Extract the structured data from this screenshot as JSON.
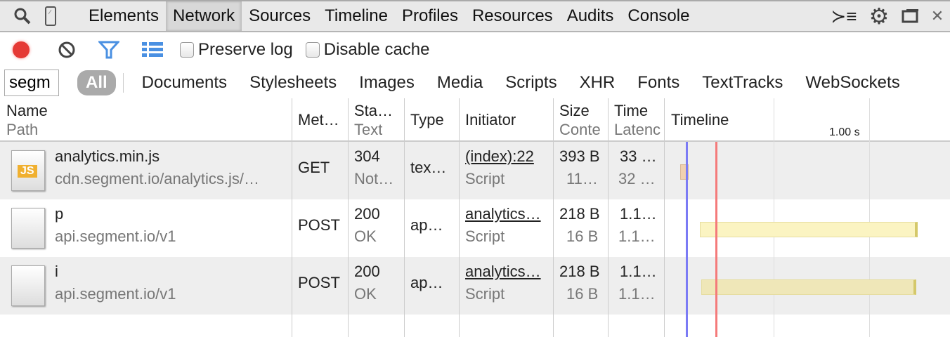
{
  "toolbar": {
    "tabs": [
      "Elements",
      "Network",
      "Sources",
      "Timeline",
      "Profiles",
      "Resources",
      "Audits",
      "Console"
    ],
    "active": "Network"
  },
  "controls": {
    "preserve_log": "Preserve log",
    "disable_cache": "Disable cache",
    "record_color": "#e53935"
  },
  "filter": {
    "search_value": "segm",
    "all": "All",
    "types": [
      "Documents",
      "Stylesheets",
      "Images",
      "Media",
      "Scripts",
      "XHR",
      "Fonts",
      "TextTracks",
      "WebSockets"
    ]
  },
  "columns": {
    "name": "Name",
    "path": "Path",
    "method": "Met…",
    "status": "Sta…",
    "status_sub": "Text",
    "type": "Type",
    "initiator": "Initiator",
    "size": "Size",
    "size_sub": "Conte",
    "time": "Time",
    "time_sub": "Latenc",
    "timeline": "Timeline",
    "tick": "1.00 s"
  },
  "rows": [
    {
      "name": "analytics.min.js",
      "path": "cdn.segment.io/analytics.js/…",
      "method": "GET",
      "status": "304",
      "status_text": "Not…",
      "type": "tex…",
      "initiator": "(index):22",
      "initiator_type": "Script",
      "size": "393 B",
      "content": "11…",
      "time": "33 …",
      "latency": "32 …",
      "icon": "js-file-icon"
    },
    {
      "name": "p",
      "path": "api.segment.io/v1",
      "method": "POST",
      "status": "200",
      "status_text": "OK",
      "type": "ap…",
      "initiator": "analytics…",
      "initiator_type": "Script",
      "size": "218 B",
      "content": "16 B",
      "time": "1.1…",
      "latency": "1.1…",
      "icon": "file-icon"
    },
    {
      "name": "i",
      "path": "api.segment.io/v1",
      "method": "POST",
      "status": "200",
      "status_text": "OK",
      "type": "ap…",
      "initiator": "analytics…",
      "initiator_type": "Script",
      "size": "218 B",
      "content": "16 B",
      "time": "1.1…",
      "latency": "1.1…",
      "icon": "file-icon"
    }
  ]
}
